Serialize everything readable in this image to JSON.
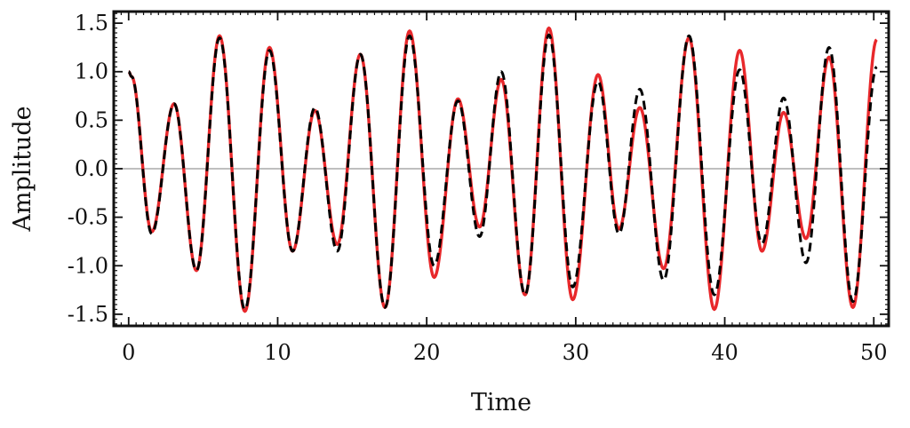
{
  "chart_data": {
    "type": "line",
    "xlabel": "Time",
    "ylabel": "Amplitude",
    "xlim": [
      -1,
      51
    ],
    "ylim": [
      -1.62,
      1.62
    ],
    "xticks": [
      0,
      10,
      20,
      30,
      40,
      50
    ],
    "xtick_labels": [
      "0",
      "10",
      "20",
      "30",
      "40",
      "50"
    ],
    "yticks": [
      -1.5,
      -1.0,
      -0.5,
      0.0,
      0.5,
      1.0,
      1.5
    ],
    "ytick_labels": [
      "-1.5",
      "-1.0",
      "-0.5",
      "0.0",
      "0.5",
      "1.0",
      "1.5"
    ],
    "grid": false,
    "zero_line": true,
    "series": [
      {
        "style": "solid",
        "color": "#e8282b",
        "x": [
          0,
          0.2,
          1.55,
          3.05,
          4.55,
          6.1,
          7.8,
          9.45,
          11.0,
          12.5,
          14.0,
          15.55,
          17.2,
          18.85,
          20.5,
          22.1,
          23.55,
          25.0,
          26.6,
          28.2,
          29.8,
          31.5,
          32.9,
          34.3,
          35.9,
          37.6,
          39.3,
          41.0,
          42.5,
          43.95,
          45.45,
          47.0,
          48.6,
          50.2
        ],
        "y": [
          1.0,
          0.95,
          -0.65,
          0.67,
          -1.05,
          1.37,
          -1.47,
          1.25,
          -0.85,
          0.6,
          -0.78,
          1.18,
          -1.43,
          1.42,
          -1.12,
          0.72,
          -0.6,
          0.92,
          -1.3,
          1.45,
          -1.35,
          0.97,
          -0.62,
          0.63,
          -1.03,
          1.35,
          -1.45,
          1.22,
          -0.85,
          0.58,
          -0.72,
          1.15,
          -1.43,
          1.33
        ]
      },
      {
        "style": "dashed",
        "color": "#000000",
        "x": [
          0,
          0.2,
          1.55,
          3.05,
          4.55,
          6.1,
          7.8,
          9.45,
          11.0,
          12.5,
          14.0,
          15.55,
          17.2,
          18.85,
          20.5,
          22.1,
          23.55,
          25.0,
          26.6,
          28.2,
          29.8,
          31.5,
          32.9,
          34.3,
          35.9,
          37.6,
          39.3,
          41.0,
          42.5,
          43.95,
          45.45,
          47.0,
          48.6,
          50.2
        ],
        "y": [
          1.0,
          0.95,
          -0.67,
          0.67,
          -1.05,
          1.35,
          -1.45,
          1.22,
          -0.85,
          0.63,
          -0.85,
          1.18,
          -1.43,
          1.37,
          -1.0,
          0.7,
          -0.7,
          1.0,
          -1.3,
          1.38,
          -1.22,
          0.9,
          -0.67,
          0.82,
          -1.15,
          1.37,
          -1.3,
          1.02,
          -0.77,
          0.73,
          -0.97,
          1.25,
          -1.37,
          1.05
        ]
      }
    ]
  }
}
